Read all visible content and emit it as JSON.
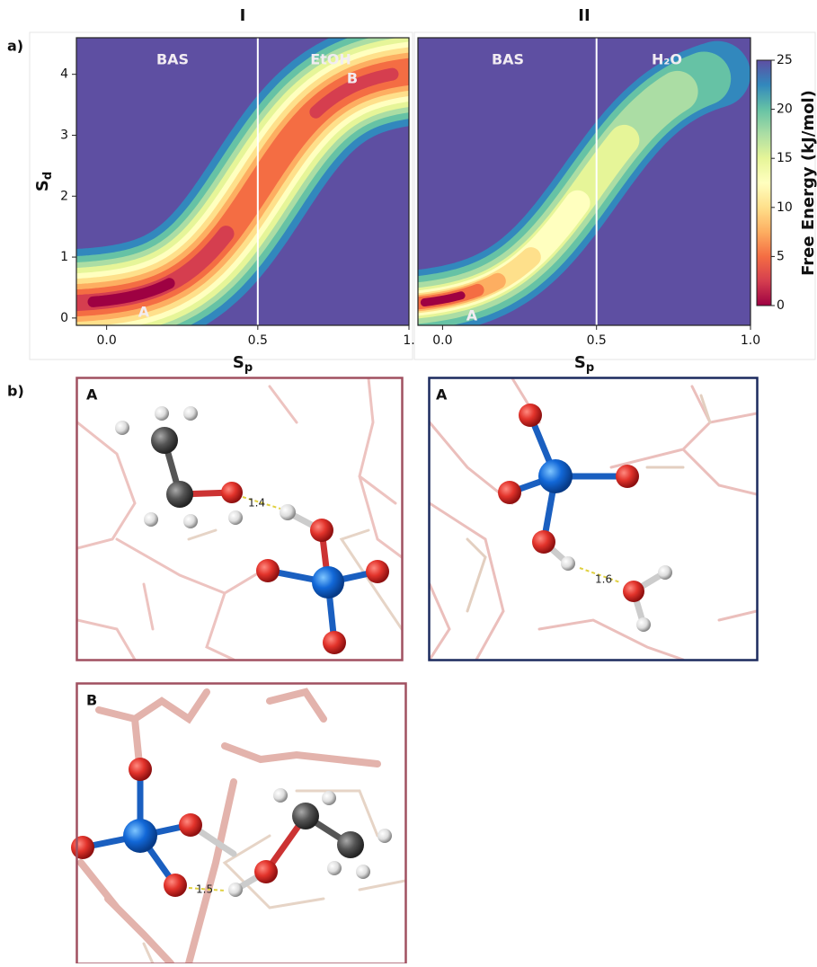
{
  "figure": {
    "panel_labels": [
      "a)",
      "b)"
    ]
  },
  "chart_data": [
    {
      "type": "contour",
      "title": "I",
      "xlabel": [
        "S",
        "p"
      ],
      "ylabel": [
        "S",
        "d"
      ],
      "xlim": [
        -0.1,
        1.0
      ],
      "ylim": [
        -0.12,
        4.6
      ],
      "xticks": [
        {
          "value": 0,
          "label": "0.0"
        },
        0.5,
        {
          "value": 1,
          "label": "1."
        }
      ],
      "yticks": [
        0,
        1,
        2,
        3,
        4
      ],
      "divider_x": 0.5,
      "annotations": [
        "BAS",
        "EtOH",
        "B",
        "A"
      ]
    },
    {
      "type": "contour",
      "title": "II",
      "xlabel": [
        "S",
        "p"
      ],
      "xlim": [
        -0.08,
        1.0
      ],
      "ylim": [
        -0.12,
        4.6
      ],
      "xticks": [
        {
          "value": 0,
          "label": "0.0"
        },
        0.5,
        {
          "value": 1,
          "label": "1.0"
        }
      ],
      "divider_x": 0.5,
      "annotations": [
        "BAS",
        "H₂O",
        "A"
      ],
      "colorbar": {
        "label": "Free Energy (kJ/mol)",
        "lim": [
          0,
          25
        ],
        "ticks": [
          0,
          5,
          10,
          15,
          20,
          25
        ],
        "colors": [
          "#9e0142",
          "#d53e4f",
          "#f46d43",
          "#fdae61",
          "#fee08b",
          "#ffffbf",
          "#e6f598",
          "#abdda4",
          "#66c2a5",
          "#3288bd",
          "#5e4fa2"
        ]
      }
    }
  ],
  "structures": [
    {
      "label": "A",
      "distance": "1.4"
    },
    {
      "label": "A",
      "distance": "1.6"
    },
    {
      "label": "B",
      "distance": "1.5"
    }
  ]
}
